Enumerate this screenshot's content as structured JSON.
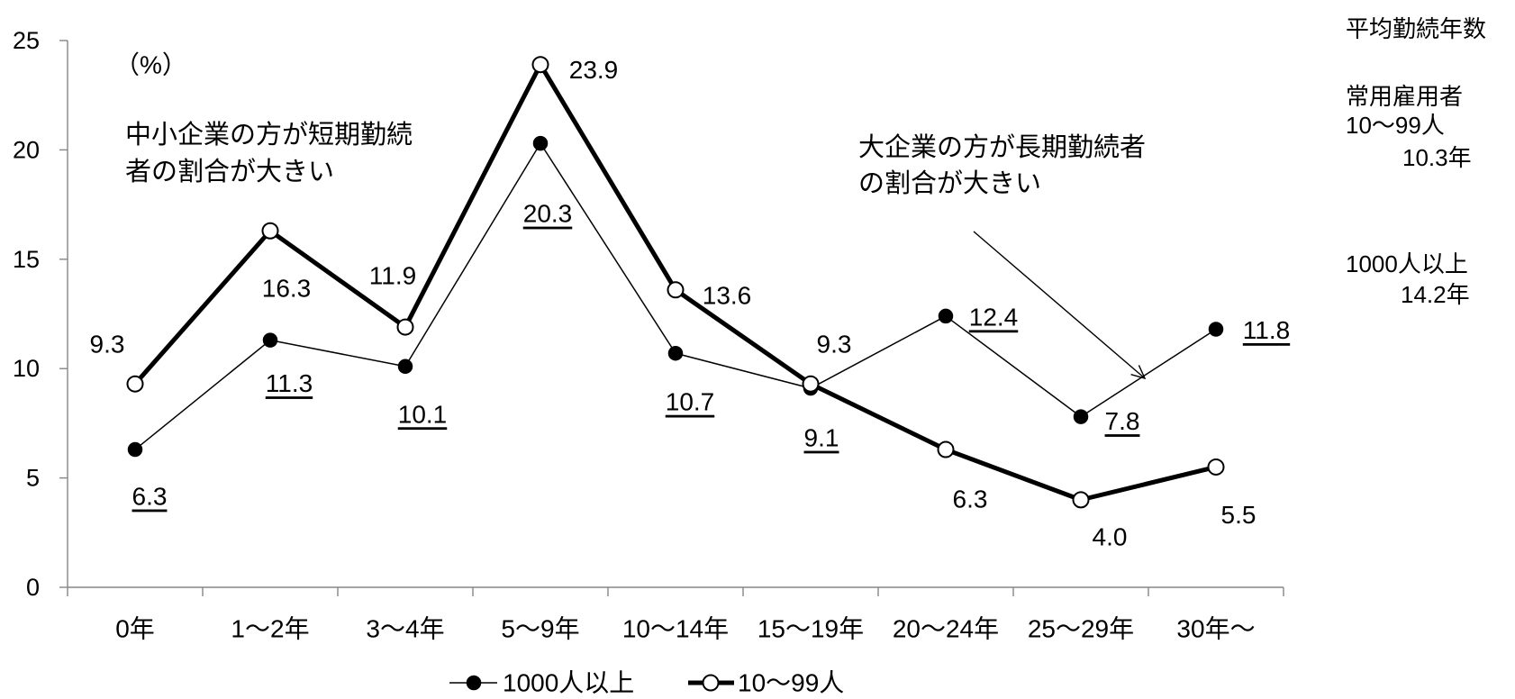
{
  "chart_data": {
    "type": "line",
    "categories": [
      "0年",
      "1～2年",
      "3～4年",
      "5～9年",
      "10～14年",
      "15～19年",
      "20～24年",
      "25～29年",
      "30年～"
    ],
    "series": [
      {
        "name": "1000人以上",
        "values": [
          6.3,
          11.3,
          10.1,
          20.3,
          10.7,
          9.1,
          12.4,
          7.8,
          11.8
        ],
        "color": "#000000",
        "marker_fill": "#000000"
      },
      {
        "name": "10～99人",
        "values": [
          9.3,
          16.3,
          11.9,
          23.9,
          13.6,
          9.3,
          6.3,
          4.0,
          5.5
        ],
        "color": "#000000",
        "marker_fill": "#ffffff"
      }
    ],
    "ylabel": "（%）",
    "ylim": [
      0,
      25
    ],
    "yticks": [
      0,
      5,
      10,
      15,
      20,
      25
    ],
    "grid": false,
    "legend": "bottom",
    "axis_color": "#868686",
    "annotations": [
      {
        "lines": [
          "中小企業の方が短期勤続",
          "者の割合が大きい"
        ]
      },
      {
        "lines": [
          "大企業の方が長期勤続者",
          "の割合が大きい"
        ]
      }
    ],
    "side_note": {
      "title": "平均勤続年数",
      "subtitle": "常用雇用者",
      "items": [
        {
          "group": "10～99人",
          "value": "10.3年"
        },
        {
          "group": "1000人以上",
          "value": "14.2年"
        }
      ]
    }
  }
}
